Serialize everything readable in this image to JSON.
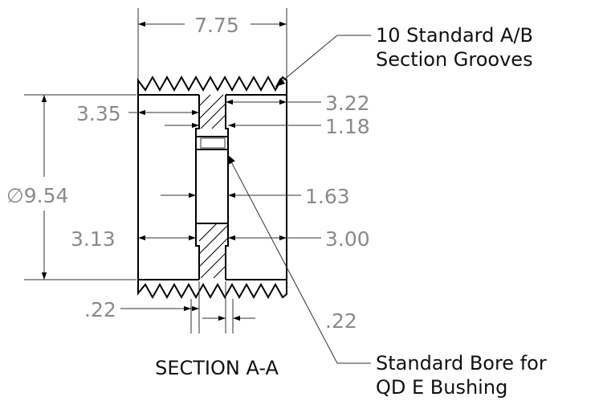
{
  "dimensions": {
    "width_top": "7.75",
    "left_upper": "3.35",
    "right_upper": "3.22",
    "right_upper_small": "1.18",
    "diameter": "∅9.54",
    "hub": "1.63",
    "left_lower": "3.13",
    "right_lower": "3.00",
    "bottom_left": ".22",
    "bottom_right": ".22"
  },
  "callouts": {
    "grooves_line1": "10 Standard A/B",
    "grooves_line2": "Section Grooves",
    "bore_line1": "Standard Bore for",
    "bore_line2": "QD E Bushing"
  },
  "title": "SECTION A-A"
}
